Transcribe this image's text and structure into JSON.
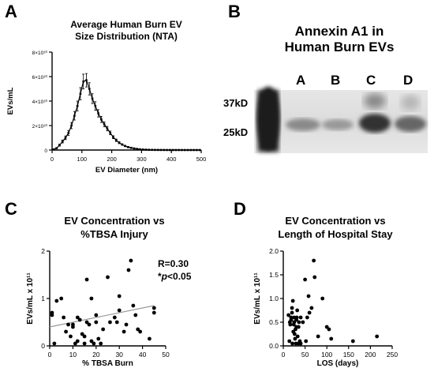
{
  "panels": {
    "A": {
      "letter": "A",
      "title_line1": "Average Human Burn EV",
      "title_line2": "Size Distribution (NTA)"
    },
    "B": {
      "letter": "B",
      "title_line1": "Annexin A1 in",
      "title_line2": "Human Burn EVs",
      "lanes": [
        "A",
        "B",
        "C",
        "D"
      ],
      "markers": [
        "37kD",
        "25kD"
      ]
    },
    "C": {
      "letter": "C",
      "title_line1": "EV Concentration vs",
      "title_line2": "%TBSA Injury",
      "stat_r": "R=0.30",
      "stat_p_prefix": "*",
      "stat_p_italic": "p",
      "stat_p_suffix": "<0.05"
    },
    "D": {
      "letter": "D",
      "title_line1": "EV Concentration vs",
      "title_line2": "Length of Hospital Stay"
    }
  },
  "colors": {
    "marker": "#000000",
    "trendline": "#999999",
    "axis": "#000000"
  },
  "chart_data": [
    {
      "id": "A",
      "type": "line",
      "title": "Average Human Burn EV Size Distribution (NTA)",
      "xlabel": "EV Diameter  (nm)",
      "ylabel": "EVs/mL",
      "xlim": [
        0,
        500
      ],
      "ylim": [
        0,
        80000000000.0
      ],
      "xticks": [
        0,
        100,
        200,
        300,
        400,
        500
      ],
      "xtick_labels": [
        "0",
        "100",
        "200",
        "300",
        "400",
        "500"
      ],
      "yticks": [
        0,
        20000000000.0,
        40000000000.0,
        60000000000.0,
        80000000000.0
      ],
      "ytick_labels": [
        "0",
        "2×10¹⁰",
        "4×10¹⁰",
        "6×10¹⁰",
        "8×10¹⁰"
      ],
      "series": [
        {
          "x": [
            5,
            15,
            25,
            35,
            45,
            55,
            65,
            75,
            85,
            95,
            105,
            115,
            125,
            135,
            145,
            155,
            165,
            175,
            185,
            195,
            205,
            215,
            225,
            235,
            245,
            255,
            265,
            275,
            285,
            295,
            305,
            315,
            325,
            335,
            345,
            355,
            365,
            375,
            385,
            395,
            405,
            415,
            425,
            435,
            445,
            455,
            465,
            475,
            485,
            495
          ],
          "y": [
            500000000.0,
            1500000000.0,
            4000000000.0,
            7000000000.0,
            10000000000.0,
            14000000000.0,
            20000000000.0,
            28000000000.0,
            36000000000.0,
            46000000000.0,
            56000000000.0,
            57000000000.0,
            50000000000.0,
            42000000000.0,
            36000000000.0,
            30000000000.0,
            25000000000.0,
            21000000000.0,
            17500000000.0,
            14000000000.0,
            10500000000.0,
            8000000000.0,
            6000000000.0,
            4500000000.0,
            3300000000.0,
            2400000000.0,
            1800000000.0,
            1300000000.0,
            900000000.0,
            600000000.0,
            400000000.0,
            300000000.0,
            200000000.0,
            150000000.0,
            100000000.0,
            80000000.0,
            60000000.0,
            40000000.0,
            30000000.0,
            20000000.0,
            20000000.0,
            10000000.0,
            10000000.0,
            10000000.0,
            0,
            0,
            0,
            0,
            0,
            0
          ],
          "err": [
            200000000.0,
            500000000.0,
            800000000.0,
            1200000000.0,
            1500000000.0,
            2000000000.0,
            2500000000.0,
            3500000000.0,
            4000000000.0,
            5000000000.0,
            6000000000.0,
            5500000000.0,
            5000000000.0,
            4000000000.0,
            3500000000.0,
            3000000000.0,
            2500000000.0,
            2000000000.0,
            1800000000.0,
            1500000000.0,
            1200000000.0,
            1000000000.0,
            800000000.0,
            600000000.0,
            500000000.0,
            400000000.0,
            300000000.0,
            200000000.0,
            200000000.0,
            100000000.0,
            100000000.0,
            100000000.0,
            0,
            0,
            0,
            0,
            0,
            0,
            0,
            0,
            0,
            0,
            0,
            0,
            0,
            0,
            0,
            0,
            0,
            0
          ]
        }
      ]
    },
    {
      "id": "C",
      "type": "scatter",
      "title": "EV Concentration vs %TBSA Injury",
      "xlabel": "% TBSA Burn",
      "ylabel": "EVs/mL x 10¹¹",
      "xlim": [
        0,
        50
      ],
      "ylim": [
        0,
        2
      ],
      "xticks": [
        0,
        10,
        20,
        30,
        40,
        50
      ],
      "yticks": [
        0,
        1,
        2
      ],
      "points": [
        [
          1,
          0.65
        ],
        [
          1,
          0.7
        ],
        [
          2,
          0.05
        ],
        [
          3,
          0.95
        ],
        [
          5,
          1.0
        ],
        [
          6,
          0.6
        ],
        [
          7,
          0.3
        ],
        [
          8,
          0.45
        ],
        [
          9,
          0.2
        ],
        [
          10,
          0.45
        ],
        [
          10,
          0.4
        ],
        [
          11,
          0.05
        ],
        [
          12,
          0.1
        ],
        [
          12,
          0.6
        ],
        [
          13,
          0.55
        ],
        [
          14,
          0.25
        ],
        [
          15,
          0.2
        ],
        [
          15,
          0.05
        ],
        [
          16,
          0.5
        ],
        [
          16,
          1.4
        ],
        [
          17,
          0.45
        ],
        [
          18,
          1.0
        ],
        [
          18,
          0.1
        ],
        [
          19,
          0.05
        ],
        [
          20,
          0.5
        ],
        [
          20,
          0.65
        ],
        [
          21,
          0.15
        ],
        [
          22,
          0.05
        ],
        [
          23,
          0.35
        ],
        [
          25,
          1.45
        ],
        [
          26,
          0.5
        ],
        [
          28,
          0.6
        ],
        [
          29,
          0.5
        ],
        [
          30,
          1.05
        ],
        [
          30,
          0.75
        ],
        [
          32,
          0.3
        ],
        [
          33,
          0.45
        ],
        [
          34,
          1.6
        ],
        [
          35,
          1.8
        ],
        [
          36,
          0.85
        ],
        [
          37,
          0.65
        ],
        [
          38,
          0.35
        ],
        [
          39,
          0.3
        ],
        [
          43,
          0.15
        ],
        [
          45,
          0.8
        ],
        [
          45,
          0.7
        ]
      ],
      "trendline": {
        "x": [
          0,
          45
        ],
        "y": [
          0.4,
          0.85
        ]
      }
    },
    {
      "id": "D",
      "type": "scatter",
      "title": "EV Concentration vs Length of Hospital Stay",
      "xlabel": "LOS (days)",
      "ylabel": "EVs/mL x 10¹¹",
      "xlim": [
        0,
        250
      ],
      "ylim": [
        0,
        2
      ],
      "xticks": [
        0,
        50,
        100,
        150,
        200,
        250
      ],
      "yticks": [
        0,
        0.5,
        1.0,
        1.5,
        2.0
      ],
      "ytick_labels": [
        "0.0",
        "0.5",
        "1.0",
        "1.5",
        "2.0"
      ],
      "points": [
        [
          12,
          0.65
        ],
        [
          14,
          0.1
        ],
        [
          15,
          0.5
        ],
        [
          16,
          0.45
        ],
        [
          18,
          0.6
        ],
        [
          18,
          0.55
        ],
        [
          20,
          0.8
        ],
        [
          20,
          0.7
        ],
        [
          21,
          0.05
        ],
        [
          22,
          0.95
        ],
        [
          23,
          0.3
        ],
        [
          24,
          0.45
        ],
        [
          25,
          0.6
        ],
        [
          25,
          0.5
        ],
        [
          26,
          0.25
        ],
        [
          27,
          0.15
        ],
        [
          28,
          0.35
        ],
        [
          29,
          0.05
        ],
        [
          30,
          0.55
        ],
        [
          30,
          0.4
        ],
        [
          31,
          0.6
        ],
        [
          32,
          0.75
        ],
        [
          33,
          0.2
        ],
        [
          35,
          0.05
        ],
        [
          35,
          0.4
        ],
        [
          36,
          0.5
        ],
        [
          38,
          0.1
        ],
        [
          40,
          0.05
        ],
        [
          40,
          0.6
        ],
        [
          45,
          0.5
        ],
        [
          50,
          1.4
        ],
        [
          52,
          0.1
        ],
        [
          55,
          0.6
        ],
        [
          58,
          1.05
        ],
        [
          60,
          0.7
        ],
        [
          65,
          0.8
        ],
        [
          70,
          1.8
        ],
        [
          72,
          1.45
        ],
        [
          80,
          0.2
        ],
        [
          90,
          1.0
        ],
        [
          100,
          0.4
        ],
        [
          105,
          0.35
        ],
        [
          110,
          0.15
        ],
        [
          160,
          0.1
        ],
        [
          215,
          0.2
        ]
      ]
    }
  ]
}
